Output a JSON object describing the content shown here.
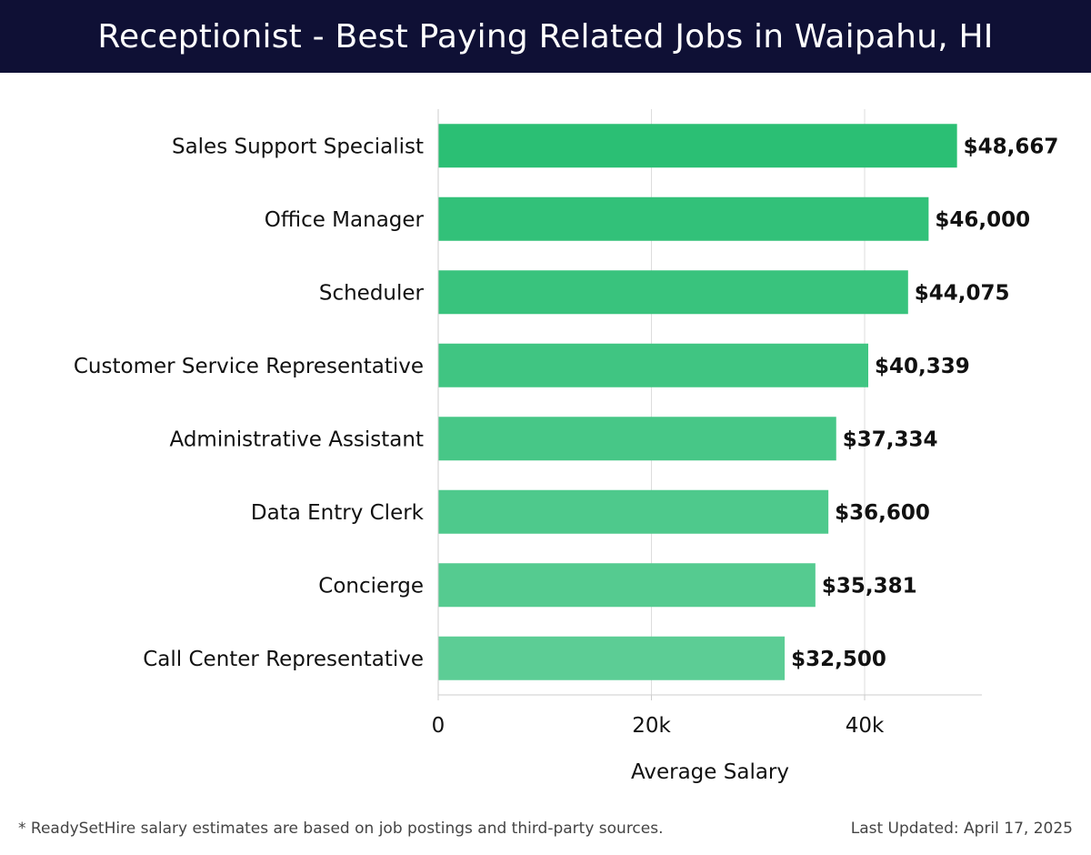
{
  "header": {
    "title": "Receptionist - Best Paying Related Jobs in Waipahu, HI"
  },
  "chart_data": {
    "type": "bar",
    "orientation": "horizontal",
    "title": "Receptionist - Best Paying Related Jobs in Waipahu, HI",
    "xlabel": "Average Salary",
    "ylabel": "",
    "categories": [
      "Sales Support Specialist",
      "Office Manager",
      "Scheduler",
      "Customer Service Representative",
      "Administrative Assistant",
      "Data Entry Clerk",
      "Concierge",
      "Call Center Representative"
    ],
    "values": [
      48667,
      46000,
      44075,
      40339,
      37334,
      36600,
      35381,
      32500
    ],
    "value_labels": [
      "$48,667",
      "$46,000",
      "$44,075",
      "$40,339",
      "$37,334",
      "$36,600",
      "$35,381",
      "$32,500"
    ],
    "xlim": [
      0,
      51000
    ],
    "xticks": [
      0,
      20000,
      40000
    ],
    "xtick_labels": [
      "0",
      "20k",
      "40k"
    ],
    "grid": "vertical",
    "colors": {
      "bar_top": "#2bbf74",
      "bar_bottom": "#5ccd95",
      "grid": "#dddddd",
      "axis": "#cccccc",
      "label": "#111111"
    }
  },
  "footer": {
    "note": "* ReadySetHire salary estimates are based on job postings and third-party sources.",
    "updated": "Last Updated: April 17, 2025"
  }
}
